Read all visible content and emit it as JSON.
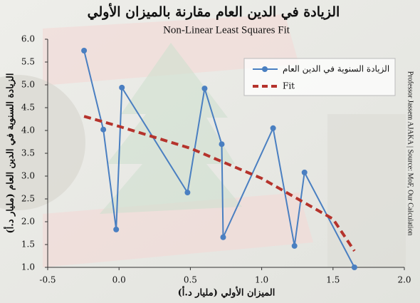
{
  "chart_data": {
    "type": "line",
    "title": "الزيادة في الدين العام مقارنة بالميزان الأولي",
    "subtitle": "Non-Linear Least Squares Fit",
    "x_label": "الميزان الأولي (مليار د.أ)",
    "y_label": "الزيادة السنوية في الدين العام (مليار د.أ)",
    "source": "Professor Jassem AJAKA | Source: MoF, Our Calculation",
    "series": [
      {
        "name": "الزيادة السنوية في الدين العام",
        "color": "#4a7fc1",
        "markers": true,
        "line_style": "solid",
        "x": [
          -0.245,
          -0.11,
          -0.02,
          0.02,
          0.48,
          0.6,
          0.72,
          0.73,
          1.08,
          1.23,
          1.3,
          1.65
        ],
        "values": [
          5.75,
          4.02,
          1.83,
          4.94,
          2.64,
          4.92,
          3.7,
          1.66,
          4.05,
          1.47,
          3.08,
          1.0
        ]
      },
      {
        "name": "Fit",
        "color": "#b5332c",
        "markers": false,
        "line_style": "dashed",
        "x": [
          -0.245,
          0.0,
          0.5,
          1.0,
          1.5,
          1.65
        ],
        "values": [
          4.31,
          4.09,
          3.61,
          2.95,
          2.06,
          1.36
        ]
      }
    ],
    "xlim": [
      -0.5,
      2.0
    ],
    "xticks": [
      -0.5,
      {
        "value": 0,
        "label": "0.0"
      },
      0.5,
      {
        "value": 1,
        "label": "1.0"
      },
      1.5,
      {
        "value": 2,
        "label": "2.0"
      }
    ],
    "ylim": [
      1.0,
      6.0
    ],
    "yticks": [
      {
        "value": 1,
        "label": "1.0"
      },
      1.5,
      {
        "value": 2,
        "label": "2.0"
      },
      2.5,
      {
        "value": 3,
        "label": "3.0"
      },
      3.5,
      {
        "value": 4,
        "label": "4.0"
      },
      4.5,
      {
        "value": 5,
        "label": "5.0"
      },
      5.5,
      {
        "value": 6,
        "label": "6.0"
      }
    ],
    "grid": false,
    "legend": "upper right"
  }
}
